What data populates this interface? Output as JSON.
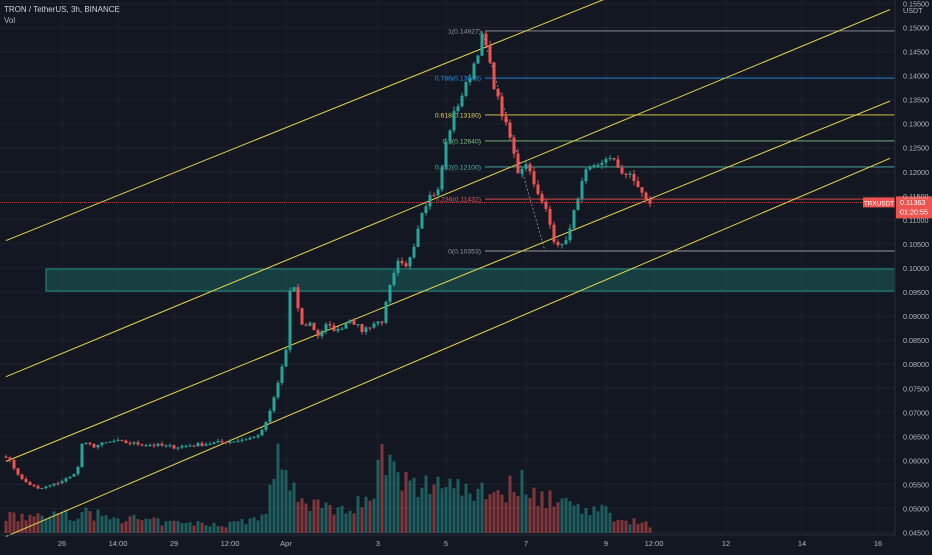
{
  "header": {
    "symbol_line": "TRON / TetherUS, 3h, BINANCE",
    "volume_label": "Vol"
  },
  "colors": {
    "background": "#131722",
    "up": "#26a69a",
    "down": "#ef5350",
    "channel": "#e8d44d",
    "zone": "#1b5e5a",
    "zone_border": "#26a69a",
    "price_tag": "#ef5350"
  },
  "chart_data": {
    "type": "candlestick",
    "title": "TRON / TetherUS, 3h, BINANCE",
    "y_axis": {
      "unit_label": "USDT",
      "range": [
        0.0445,
        0.1557
      ],
      "ticks": [
        0.045,
        0.05,
        0.055,
        0.06,
        0.065,
        0.07,
        0.075,
        0.08,
        0.085,
        0.09,
        0.095,
        0.1,
        0.105,
        0.11,
        0.115,
        0.12,
        0.125,
        0.13,
        0.135,
        0.14,
        0.145,
        0.15,
        0.155
      ],
      "tick_labels": [
        "0.04500",
        "0.05000",
        "0.05500",
        "0.06000",
        "0.06500",
        "0.07000",
        "0.07500",
        "0.08000",
        "0.08500",
        "0.09000",
        "0.09500",
        "0.10000",
        "0.10500",
        "0.11000",
        "0.11500",
        "0.12000",
        "0.12500",
        "0.13000",
        "0.13500",
        "0.14000",
        "0.14500",
        "0.15000",
        "0.15500"
      ]
    },
    "x_axis": {
      "tick_labels": [
        "26",
        "14:00",
        "29",
        "12:00",
        "Apr",
        "3",
        "5",
        "7",
        "9",
        "12:00",
        "12",
        "14",
        "16"
      ],
      "tick_bar_index": [
        14,
        28,
        42,
        56,
        70,
        93,
        110,
        130,
        150,
        162,
        180,
        199,
        218
      ]
    },
    "last_price": {
      "pair_label": "TRXUSDT",
      "value": "0.11363",
      "countdown": "01:20:55"
    },
    "fibonacci": [
      {
        "ratio": "1",
        "value": 0.14927,
        "label": "1(0.14927)",
        "color": "#9598a1"
      },
      {
        "ratio": "0.786",
        "value": 0.13948,
        "label": "0.786(0.13948)",
        "color": "#2196f3"
      },
      {
        "ratio": "0.618",
        "value": 0.1318,
        "label": "0.618(0.13180)",
        "color": "#e8d44d"
      },
      {
        "ratio": "0.5",
        "value": 0.1264,
        "label": "0.5(0.12640)",
        "color": "#81c784"
      },
      {
        "ratio": "0.382",
        "value": 0.121,
        "label": "0.382(0.12100)",
        "color": "#4db6ac"
      },
      {
        "ratio": "0.236",
        "value": 0.11432,
        "label": "0.236(0.11432)",
        "color": "#ef5350"
      },
      {
        "ratio": "0",
        "value": 0.10353,
        "label": "0(0.10353)",
        "color": "#9598a1"
      }
    ],
    "zone": {
      "from": 0.0952,
      "to": 0.0998
    },
    "channels": [
      {
        "from": [
          0,
          0.1057
        ],
        "to": [
          153,
          0.157
        ]
      },
      {
        "from": [
          0,
          0.0774
        ],
        "to": [
          221,
          0.1537
        ]
      },
      {
        "from": [
          0,
          0.0598
        ],
        "to": [
          221,
          0.1347
        ]
      },
      {
        "from": [
          0,
          0.0442
        ],
        "to": [
          221,
          0.1228
        ]
      }
    ],
    "anchors": [
      [
        0,
        0.061
      ],
      [
        4,
        0.056
      ],
      [
        8,
        0.054
      ],
      [
        12,
        0.055
      ],
      [
        16,
        0.0565
      ],
      [
        18,
        0.0585
      ],
      [
        19,
        0.0635
      ],
      [
        22,
        0.063
      ],
      [
        27,
        0.064
      ],
      [
        32,
        0.0635
      ],
      [
        37,
        0.0632
      ],
      [
        42,
        0.0628
      ],
      [
        47,
        0.0632
      ],
      [
        52,
        0.0636
      ],
      [
        58,
        0.0642
      ],
      [
        62,
        0.0648
      ],
      [
        64,
        0.066
      ],
      [
        66,
        0.07
      ],
      [
        68,
        0.076
      ],
      [
        70,
        0.083
      ],
      [
        71,
        0.095
      ],
      [
        72,
        0.0955
      ],
      [
        74,
        0.088
      ],
      [
        76,
        0.0885
      ],
      [
        78,
        0.086
      ],
      [
        80,
        0.088
      ],
      [
        83,
        0.087
      ],
      [
        86,
        0.0895
      ],
      [
        89,
        0.087
      ],
      [
        92,
        0.0885
      ],
      [
        94,
        0.089
      ],
      [
        96,
        0.096
      ],
      [
        98,
        0.101
      ],
      [
        100,
        0.1
      ],
      [
        102,
        0.105
      ],
      [
        104,
        0.112
      ],
      [
        106,
        0.115
      ],
      [
        108,
        0.116
      ],
      [
        110,
        0.126
      ],
      [
        112,
        0.132
      ],
      [
        114,
        0.136
      ],
      [
        116,
        0.14
      ],
      [
        118,
        0.145
      ],
      [
        119,
        0.148
      ],
      [
        120,
        0.146
      ],
      [
        122,
        0.138
      ],
      [
        124,
        0.132
      ],
      [
        126,
        0.127
      ],
      [
        128,
        0.12
      ],
      [
        130,
        0.122
      ],
      [
        132,
        0.118
      ],
      [
        133,
        0.115
      ],
      [
        135,
        0.112
      ],
      [
        137,
        0.106
      ],
      [
        139,
        0.1045
      ],
      [
        141,
        0.108
      ],
      [
        143,
        0.115
      ],
      [
        145,
        0.12
      ],
      [
        148,
        0.121
      ],
      [
        150,
        0.123
      ],
      [
        152,
        0.122
      ],
      [
        154,
        0.12
      ],
      [
        156,
        0.119
      ],
      [
        158,
        0.117
      ],
      [
        160,
        0.114
      ],
      [
        161,
        0.1136
      ]
    ],
    "volume_profile": [
      [
        0,
        0.18
      ],
      [
        20,
        0.22
      ],
      [
        40,
        0.12
      ],
      [
        55,
        0.1
      ],
      [
        65,
        0.2
      ],
      [
        68,
        0.9
      ],
      [
        70,
        1.0
      ],
      [
        72,
        0.45
      ],
      [
        80,
        0.3
      ],
      [
        90,
        0.35
      ],
      [
        94,
        0.85
      ],
      [
        98,
        0.6
      ],
      [
        104,
        0.5
      ],
      [
        108,
        0.65
      ],
      [
        112,
        0.6
      ],
      [
        116,
        0.5
      ],
      [
        120,
        0.55
      ],
      [
        124,
        0.45
      ],
      [
        128,
        0.6
      ],
      [
        132,
        0.5
      ],
      [
        136,
        0.4
      ],
      [
        140,
        0.35
      ],
      [
        146,
        0.3
      ],
      [
        152,
        0.2
      ],
      [
        161,
        0.1
      ]
    ],
    "bars": 162
  }
}
